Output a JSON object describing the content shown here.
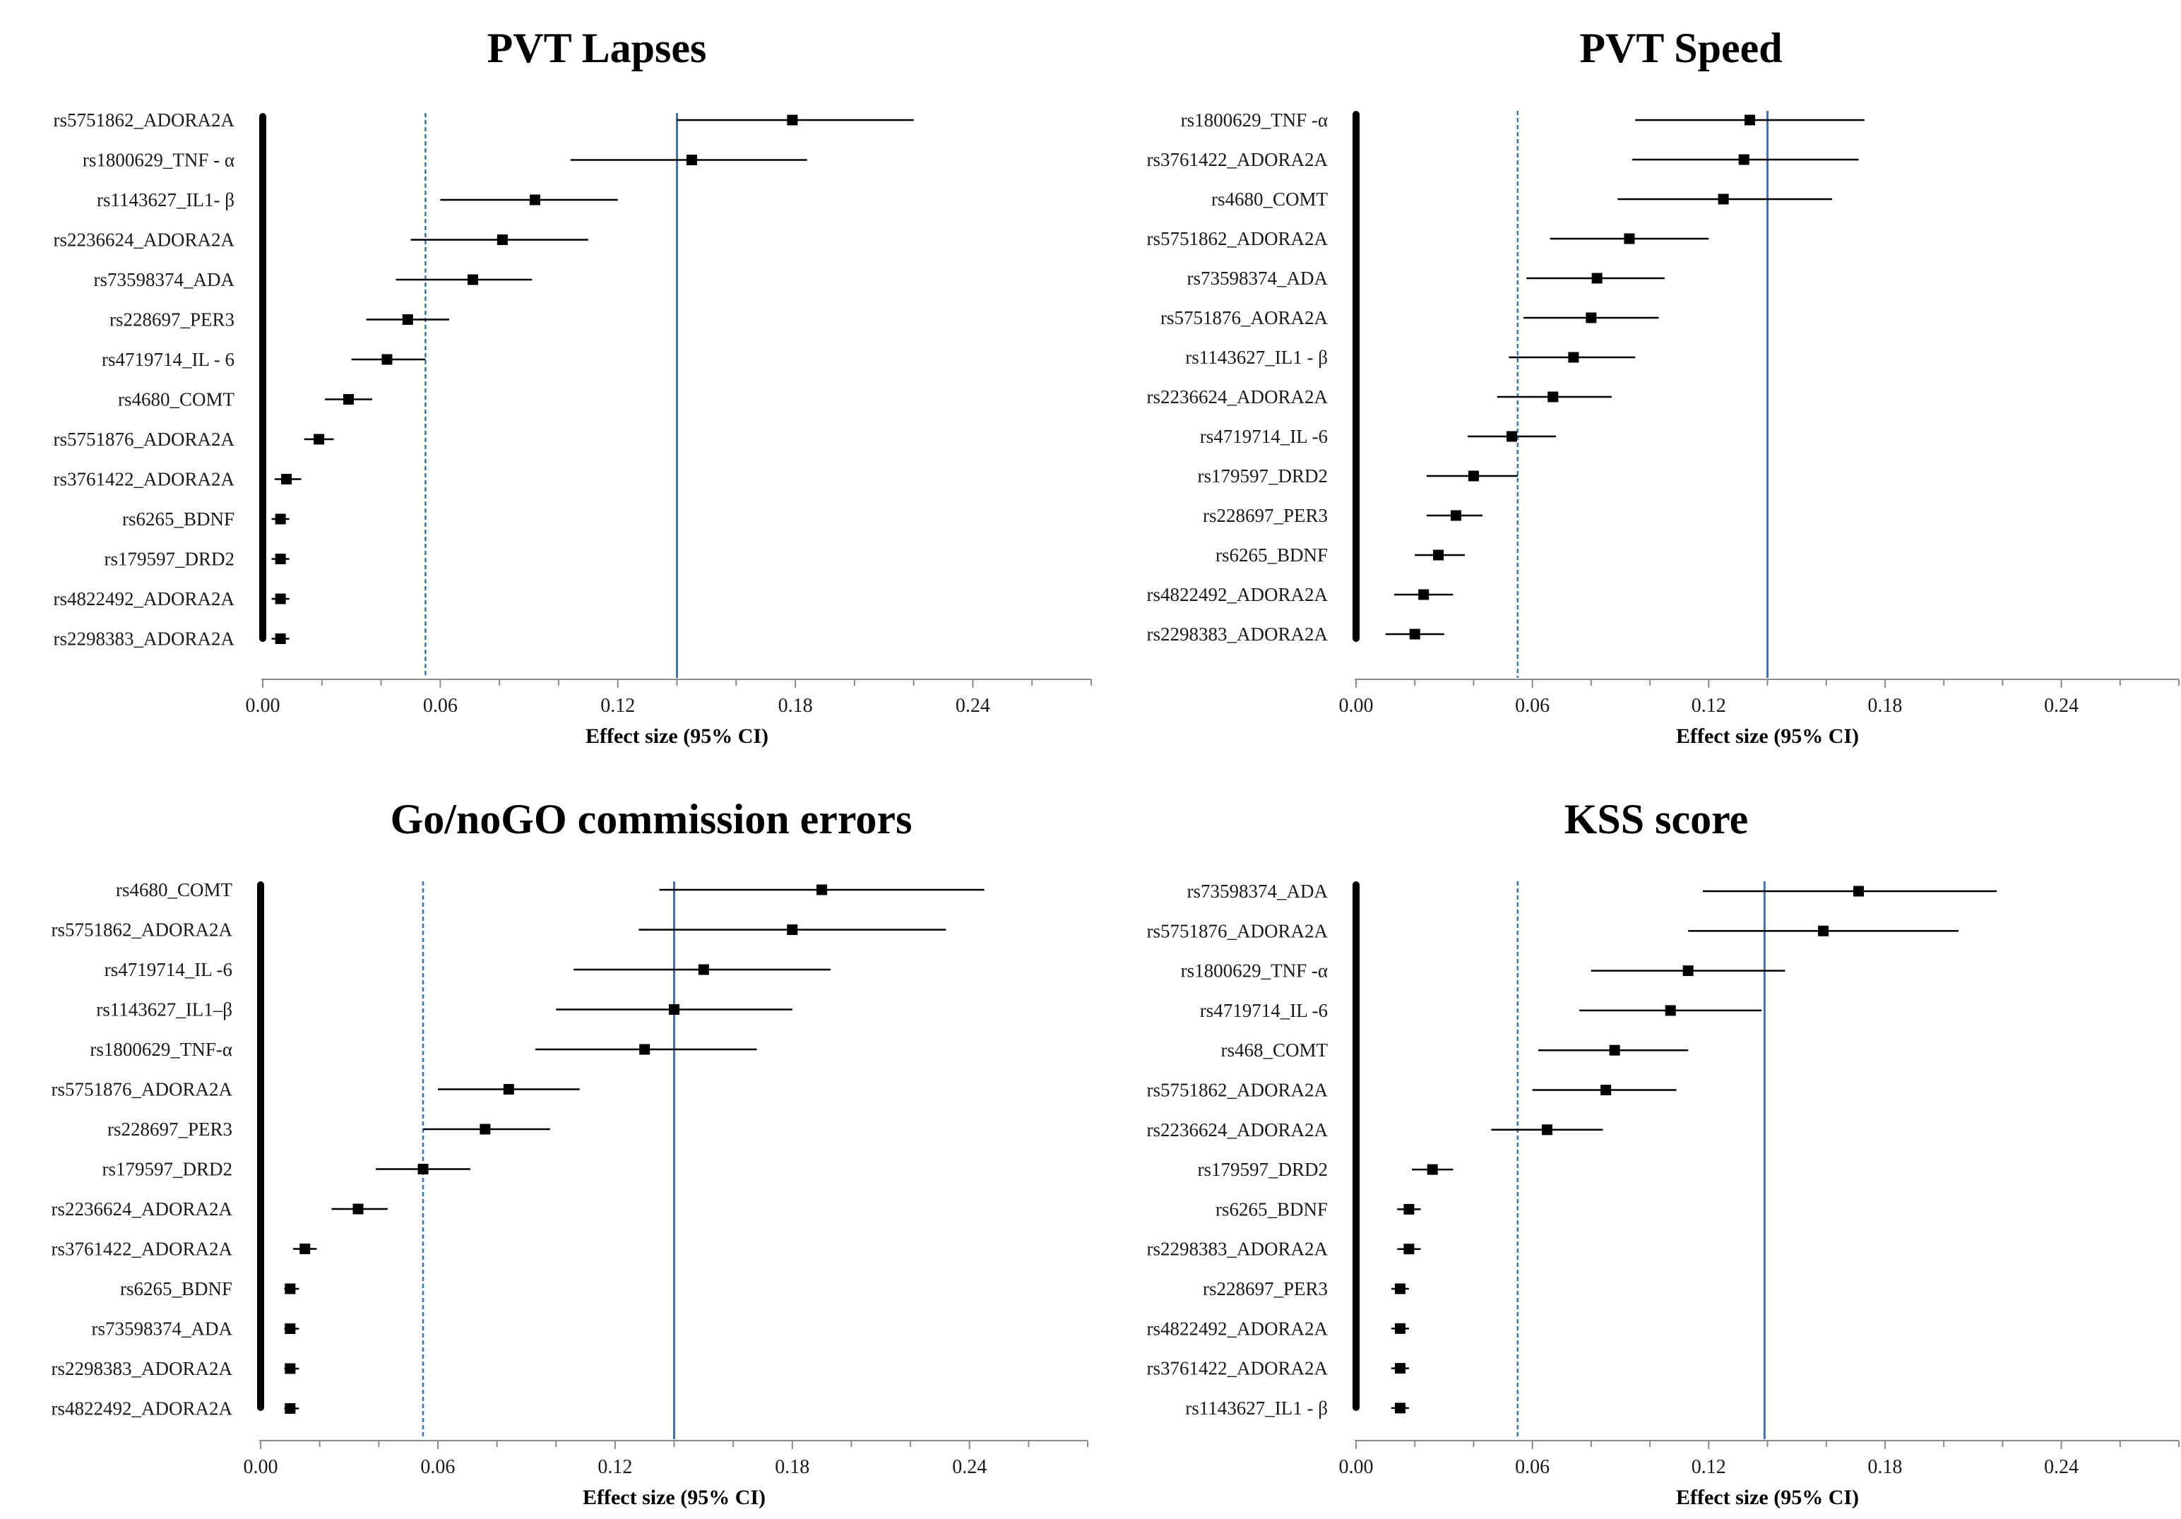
{
  "chart_data": [
    {
      "type": "forest",
      "title": "PVT Lapses",
      "xlabel": "Effect size (95% CI)",
      "xlim": [
        0,
        0.28
      ],
      "xticks": [
        "0.00",
        "0.06",
        "0.12",
        "0.18",
        "0.24"
      ],
      "ref_dashed": 0.055,
      "ref_solid": 0.14,
      "rows": [
        {
          "label": "rs5751862_ADORA2A",
          "value": 0.179,
          "lo": 0.14,
          "hi": 0.22
        },
        {
          "label": "rs1800629_TNF - α",
          "value": 0.145,
          "lo": 0.104,
          "hi": 0.184
        },
        {
          "label": "rs1143627_IL1- β",
          "value": 0.092,
          "lo": 0.06,
          "hi": 0.12
        },
        {
          "label": "rs2236624_ADORA2A",
          "value": 0.081,
          "lo": 0.05,
          "hi": 0.11
        },
        {
          "label": "rs73598374_ADA",
          "value": 0.071,
          "lo": 0.045,
          "hi": 0.091
        },
        {
          "label": "rs228697_PER3",
          "value": 0.049,
          "lo": 0.035,
          "hi": 0.063
        },
        {
          "label": "rs4719714_IL - 6",
          "value": 0.042,
          "lo": 0.03,
          "hi": 0.055
        },
        {
          "label": "rs4680_COMT",
          "value": 0.029,
          "lo": 0.021,
          "hi": 0.037
        },
        {
          "label": "rs5751876_ADORA2A",
          "value": 0.019,
          "lo": 0.014,
          "hi": 0.024
        },
        {
          "label": "rs3761422_ADORA2A",
          "value": 0.008,
          "lo": 0.004,
          "hi": 0.013
        },
        {
          "label": "rs6265_BDNF",
          "value": 0.006,
          "lo": 0.003,
          "hi": 0.009
        },
        {
          "label": "rs179597_DRD2",
          "value": 0.006,
          "lo": 0.003,
          "hi": 0.009
        },
        {
          "label": "rs4822492_ADORA2A",
          "value": 0.006,
          "lo": 0.003,
          "hi": 0.009
        },
        {
          "label": "rs2298383_ADORA2A",
          "value": 0.006,
          "lo": 0.003,
          "hi": 0.009
        }
      ]
    },
    {
      "type": "forest",
      "title": "PVT Speed",
      "xlabel": "Effect size (95% CI)",
      "xlim": [
        0,
        0.28
      ],
      "xticks": [
        "0.00",
        "0.06",
        "0.12",
        "0.18",
        "0.24"
      ],
      "ref_dashed": 0.055,
      "ref_solid": 0.14,
      "rows": [
        {
          "label": "rs1800629_TNF -α",
          "value": 0.134,
          "lo": 0.095,
          "hi": 0.173
        },
        {
          "label": "rs3761422_ADORA2A",
          "value": 0.132,
          "lo": 0.094,
          "hi": 0.171
        },
        {
          "label": "rs4680_COMT",
          "value": 0.125,
          "lo": 0.089,
          "hi": 0.162
        },
        {
          "label": "rs5751862_ADORA2A",
          "value": 0.093,
          "lo": 0.066,
          "hi": 0.12
        },
        {
          "label": "rs73598374_ADA",
          "value": 0.082,
          "lo": 0.058,
          "hi": 0.105
        },
        {
          "label": "rs5751876_AORA2A",
          "value": 0.08,
          "lo": 0.057,
          "hi": 0.103
        },
        {
          "label": "rs1143627_IL1 - β",
          "value": 0.074,
          "lo": 0.052,
          "hi": 0.095
        },
        {
          "label": "rs2236624_ADORA2A",
          "value": 0.067,
          "lo": 0.048,
          "hi": 0.087
        },
        {
          "label": "rs4719714_IL -6",
          "value": 0.053,
          "lo": 0.038,
          "hi": 0.068
        },
        {
          "label": "rs179597_DRD2",
          "value": 0.04,
          "lo": 0.024,
          "hi": 0.055
        },
        {
          "label": "rs228697_PER3",
          "value": 0.034,
          "lo": 0.024,
          "hi": 0.043
        },
        {
          "label": "rs6265_BDNF",
          "value": 0.028,
          "lo": 0.02,
          "hi": 0.037
        },
        {
          "label": "rs4822492_ADORA2A",
          "value": 0.023,
          "lo": 0.013,
          "hi": 0.033
        },
        {
          "label": "rs2298383_ADORA2A",
          "value": 0.02,
          "lo": 0.01,
          "hi": 0.03
        }
      ]
    },
    {
      "type": "forest",
      "title": "Go/noGO commission errors",
      "xlabel": "Effect size (95% CI)",
      "xlim": [
        0,
        0.28
      ],
      "xticks": [
        "0.00",
        "0.06",
        "0.12",
        "0.18",
        "0.24"
      ],
      "ref_dashed": 0.055,
      "ref_solid": 0.14,
      "rows": [
        {
          "label": "rs4680_COMT",
          "value": 0.19,
          "lo": 0.135,
          "hi": 0.245
        },
        {
          "label": "rs5751862_ADORA2A",
          "value": 0.18,
          "lo": 0.128,
          "hi": 0.232
        },
        {
          "label": "rs4719714_IL -6",
          "value": 0.15,
          "lo": 0.106,
          "hi": 0.193
        },
        {
          "label": "rs1143627_IL1–β",
          "value": 0.14,
          "lo": 0.1,
          "hi": 0.18
        },
        {
          "label": "rs1800629_TNF-α",
          "value": 0.13,
          "lo": 0.093,
          "hi": 0.168
        },
        {
          "label": "rs5751876_ADORA2A",
          "value": 0.084,
          "lo": 0.06,
          "hi": 0.108
        },
        {
          "label": "rs228697_PER3",
          "value": 0.076,
          "lo": 0.055,
          "hi": 0.098
        },
        {
          "label": "rs179597_DRD2",
          "value": 0.055,
          "lo": 0.039,
          "hi": 0.071
        },
        {
          "label": "rs2236624_ADORA2A",
          "value": 0.033,
          "lo": 0.024,
          "hi": 0.043
        },
        {
          "label": "rs3761422_ADORA2A",
          "value": 0.015,
          "lo": 0.011,
          "hi": 0.019
        },
        {
          "label": "rs6265_BDNF",
          "value": 0.01,
          "lo": 0.008,
          "hi": 0.013
        },
        {
          "label": "rs73598374_ADA",
          "value": 0.01,
          "lo": 0.008,
          "hi": 0.013
        },
        {
          "label": "rs2298383_ADORA2A",
          "value": 0.01,
          "lo": 0.008,
          "hi": 0.013
        },
        {
          "label": "rs4822492_ADORA2A",
          "value": 0.01,
          "lo": 0.008,
          "hi": 0.013
        }
      ]
    },
    {
      "type": "forest",
      "title": "KSS score",
      "xlabel": "Effect size (95% CI)",
      "xlim": [
        0,
        0.28
      ],
      "xticks": [
        "0.00",
        "0.06",
        "0.12",
        "0.18",
        "0.24"
      ],
      "ref_dashed": 0.055,
      "ref_solid": 0.139,
      "rows": [
        {
          "label": "rs73598374_ADA",
          "value": 0.171,
          "lo": 0.118,
          "hi": 0.218
        },
        {
          "label": "rs5751876_ADORA2A",
          "value": 0.159,
          "lo": 0.113,
          "hi": 0.205
        },
        {
          "label": "rs1800629_TNF -α",
          "value": 0.113,
          "lo": 0.08,
          "hi": 0.146
        },
        {
          "label": "rs4719714_IL -6",
          "value": 0.107,
          "lo": 0.076,
          "hi": 0.138
        },
        {
          "label": "rs468_COMT",
          "value": 0.088,
          "lo": 0.062,
          "hi": 0.113
        },
        {
          "label": "rs5751862_ADORA2A",
          "value": 0.085,
          "lo": 0.06,
          "hi": 0.109
        },
        {
          "label": "rs2236624_ADORA2A",
          "value": 0.065,
          "lo": 0.046,
          "hi": 0.084
        },
        {
          "label": "rs179597_DRD2",
          "value": 0.026,
          "lo": 0.019,
          "hi": 0.033
        },
        {
          "label": "rs6265_BDNF",
          "value": 0.018,
          "lo": 0.014,
          "hi": 0.022
        },
        {
          "label": "rs2298383_ADORA2A",
          "value": 0.018,
          "lo": 0.014,
          "hi": 0.022
        },
        {
          "label": "rs228697_PER3",
          "value": 0.015,
          "lo": 0.012,
          "hi": 0.018
        },
        {
          "label": "rs4822492_ADORA2A",
          "value": 0.015,
          "lo": 0.012,
          "hi": 0.018
        },
        {
          "label": "rs3761422_ADORA2A",
          "value": 0.015,
          "lo": 0.012,
          "hi": 0.018
        },
        {
          "label": "rs1143627_IL1 - β",
          "value": 0.015,
          "lo": 0.012,
          "hi": 0.018
        }
      ],
      "colors": {
        "ref": "#2e75c8",
        "ink": "#000000",
        "axis": "#888888"
      }
    }
  ]
}
